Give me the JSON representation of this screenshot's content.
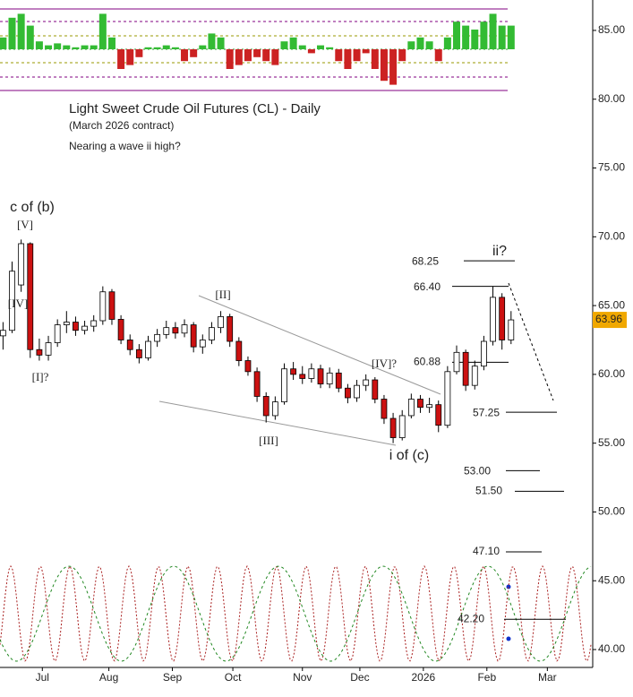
{
  "chart_data": {
    "type": "candlestick",
    "title": "Light Sweet Crude Oil Futures (CL) - Daily",
    "subtitle": "(March 2026 contract)",
    "annotation": "Nearing a wave ii high?",
    "x": [
      0,
      3,
      6,
      9,
      12,
      15,
      18,
      21,
      24,
      27,
      30,
      33,
      36,
      39,
      42,
      45,
      48,
      51,
      54,
      57,
      60,
      63,
      66,
      69,
      72,
      75,
      78,
      81,
      84,
      87,
      90,
      93,
      96,
      99,
      102,
      105,
      108,
      111,
      114,
      117,
      120,
      123,
      126,
      129,
      132,
      135,
      138,
      141,
      144,
      147,
      150,
      153,
      156,
      159,
      162,
      165,
      168
    ],
    "open": [
      62.8,
      63.2,
      66.5,
      69.5,
      61.8,
      61.4,
      62.3,
      63.6,
      63.8,
      63.2,
      63.5,
      63.9,
      66.0,
      64.0,
      62.5,
      61.8,
      61.2,
      62.4,
      62.9,
      63.4,
      63.0,
      63.6,
      62.0,
      62.5,
      63.4,
      64.2,
      62.4,
      61.0,
      60.2,
      58.4,
      57.0,
      58.0,
      60.4,
      60.0,
      59.7,
      60.4,
      59.3,
      60.1,
      59.0,
      58.3,
      59.2,
      59.6,
      58.2,
      56.8,
      55.4,
      57.0,
      58.2,
      57.6,
      57.8,
      56.3,
      60.2,
      61.6,
      59.2,
      60.6,
      62.4,
      65.6,
      62.5
    ],
    "high": [
      63.8,
      68.2,
      69.8,
      69.6,
      62.6,
      62.8,
      64.0,
      64.6,
      64.2,
      63.9,
      64.3,
      66.4,
      66.2,
      64.3,
      62.9,
      62.2,
      62.8,
      63.3,
      63.9,
      63.8,
      64.0,
      63.8,
      62.9,
      63.8,
      64.6,
      64.4,
      62.7,
      61.3,
      60.5,
      58.7,
      58.4,
      60.8,
      60.9,
      60.6,
      60.8,
      60.7,
      60.5,
      60.4,
      59.3,
      59.6,
      60.0,
      59.8,
      58.5,
      57.2,
      57.4,
      58.6,
      58.5,
      58.3,
      58.1,
      60.6,
      62.1,
      61.8,
      61.0,
      62.8,
      66.4,
      65.9,
      64.6
    ],
    "low": [
      61.8,
      63.0,
      66.0,
      61.2,
      61.0,
      61.0,
      62.0,
      63.0,
      62.8,
      62.9,
      63.1,
      63.6,
      63.6,
      62.2,
      61.4,
      60.8,
      61.0,
      62.0,
      62.6,
      62.6,
      62.7,
      61.6,
      61.5,
      62.2,
      63.0,
      62.0,
      60.6,
      59.9,
      58.0,
      56.5,
      56.7,
      57.8,
      59.6,
      59.3,
      59.4,
      59.0,
      59.0,
      58.7,
      57.9,
      58.0,
      58.8,
      57.9,
      56.4,
      55.0,
      55.2,
      56.8,
      57.2,
      57.2,
      55.8,
      56.1,
      60.0,
      58.8,
      58.9,
      60.3,
      62.1,
      61.8,
      62.2
    ],
    "close": [
      63.2,
      67.5,
      69.5,
      61.8,
      61.4,
      62.3,
      63.6,
      63.8,
      63.2,
      63.5,
      63.9,
      66.0,
      64.0,
      62.5,
      61.8,
      61.2,
      62.4,
      62.9,
      63.4,
      63.0,
      63.6,
      62.0,
      62.5,
      63.4,
      64.2,
      62.4,
      61.0,
      60.2,
      58.4,
      57.0,
      58.0,
      60.4,
      60.0,
      59.7,
      60.4,
      59.3,
      60.1,
      59.0,
      58.3,
      59.2,
      59.6,
      58.2,
      56.8,
      55.4,
      57.0,
      58.2,
      57.6,
      57.8,
      56.3,
      60.2,
      61.6,
      59.2,
      60.6,
      62.4,
      65.6,
      62.5,
      63.96
    ],
    "up_color": "#ffffff",
    "down_color": "#cc1111",
    "xlim": [
      -1,
      195
    ],
    "xticks": [
      {
        "value": 13,
        "label": "Jul"
      },
      {
        "value": 35,
        "label": "Aug"
      },
      {
        "value": 56,
        "label": "Sep"
      },
      {
        "value": 76,
        "label": "Oct"
      },
      {
        "value": 99,
        "label": "Nov"
      },
      {
        "value": 118,
        "label": "Dec"
      },
      {
        "value": 139,
        "label": "2026"
      },
      {
        "value": 160,
        "label": "Feb"
      },
      {
        "value": 180,
        "label": "Mar"
      }
    ],
    "ylim": [
      38.7,
      87.21
    ],
    "yticks": [
      {
        "value": 40,
        "label": "40.00"
      },
      {
        "value": 45,
        "label": "45.00"
      },
      {
        "value": 50,
        "label": "50.00"
      },
      {
        "value": 55,
        "label": "55.00"
      },
      {
        "value": 60,
        "label": "60.00"
      },
      {
        "value": 65,
        "label": "65.00"
      },
      {
        "value": 70,
        "label": "70.00"
      },
      {
        "value": 75,
        "label": "75.00"
      },
      {
        "value": 80,
        "label": "80.00"
      },
      {
        "value": 85,
        "label": "85.00"
      }
    ],
    "wave_labels": [
      "c of (b)",
      "[V]",
      "[IV]",
      "[I]?",
      "[II]",
      "[III]",
      "[IV]?",
      "i of (c)",
      "ii?"
    ],
    "levels": {
      "values": [
        68.25,
        66.4,
        60.88,
        57.25,
        53,
        51.5,
        47.1,
        42.2
      ],
      "value_labels": [
        "68.25",
        "66.40",
        "60.88",
        "57.25",
        "53.00",
        "51.50",
        "47.10",
        "42.20"
      ]
    },
    "oscillator": {
      "values": [
        0.3,
        0.8,
        0.9,
        0.6,
        0.2,
        0.1,
        0.15,
        0.1,
        0.05,
        0.1,
        0.1,
        0.9,
        0.3,
        -0.5,
        -0.4,
        -0.2,
        0.05,
        0.05,
        0.1,
        0.05,
        -0.3,
        -0.2,
        0.1,
        0.4,
        0.3,
        -0.5,
        -0.4,
        -0.3,
        -0.2,
        -0.3,
        -0.4,
        0.2,
        0.3,
        0.1,
        -0.1,
        0.1,
        0.05,
        -0.3,
        -0.5,
        -0.3,
        -0.1,
        -0.5,
        -0.8,
        -0.9,
        -0.3,
        0.2,
        0.3,
        0.2,
        -0.3,
        0.3,
        0.7,
        0.6,
        0.5,
        0.7,
        0.9,
        0.6,
        0.6
      ],
      "pos_color": "#33bb33",
      "neg_color": "#cc2222"
    }
  }
}
